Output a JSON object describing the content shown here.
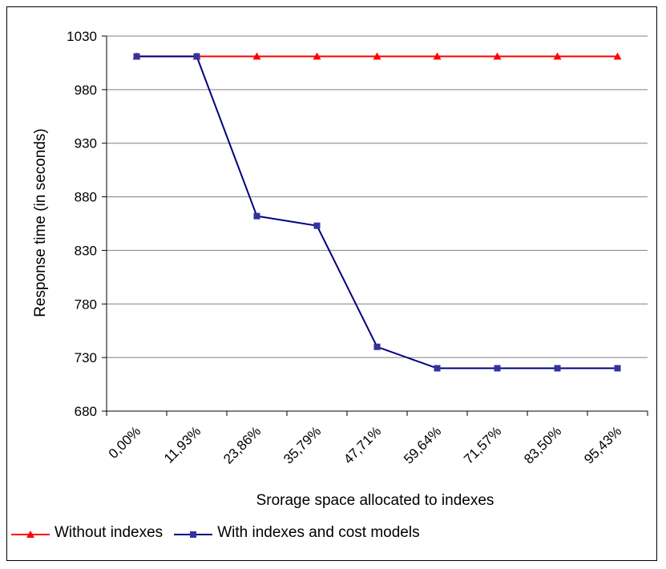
{
  "chart_data": {
    "type": "line",
    "categories": [
      "0,00%",
      "11,93%",
      "23,86%",
      "35,79%",
      "47,71%",
      "59,64%",
      "71,57%",
      "83,50%",
      "95,43%"
    ],
    "series": [
      {
        "name": "Without indexes",
        "color": "#ff0000",
        "marker": "triangle",
        "values": [
          1011,
          1011,
          1011,
          1011,
          1011,
          1011,
          1011,
          1011,
          1011
        ]
      },
      {
        "name": "With indexes and cost models",
        "color": "#000080",
        "marker_color": "#3333a0",
        "marker": "square",
        "values": [
          1011,
          1011,
          862,
          853,
          740,
          720,
          720,
          720,
          720
        ]
      }
    ],
    "xlabel": "Srorage space allocated to indexes",
    "ylabel": "Response time (in seconds)",
    "ylim": [
      680,
      1030
    ],
    "yticks": [
      680,
      730,
      780,
      830,
      880,
      930,
      980,
      1030
    ],
    "grid": true,
    "legend_position": "bottom-left"
  }
}
